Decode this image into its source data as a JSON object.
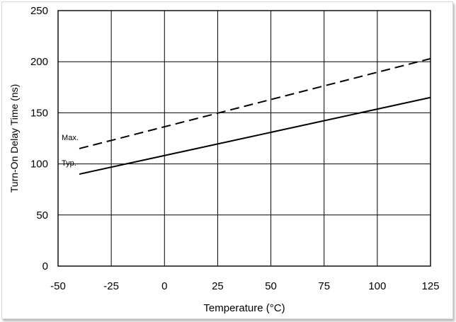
{
  "chart_data": {
    "type": "line",
    "title": "",
    "xlabel": "Temperature (°C)",
    "ylabel": "Turn-On Delay Time (ns)",
    "xlim": [
      -50,
      125
    ],
    "ylim": [
      0,
      250
    ],
    "xticks": [
      -50,
      -25,
      0,
      25,
      50,
      75,
      100,
      125
    ],
    "yticks": [
      0,
      50,
      100,
      150,
      200,
      250
    ],
    "grid": true,
    "series": [
      {
        "name": "Max.",
        "style": "dashed",
        "x": [
          -40,
          125
        ],
        "y": [
          115,
          203
        ]
      },
      {
        "name": "Typ.",
        "style": "solid",
        "x": [
          -40,
          125
        ],
        "y": [
          90,
          165
        ]
      }
    ],
    "annotations": [
      "Max.",
      "Typ."
    ]
  }
}
